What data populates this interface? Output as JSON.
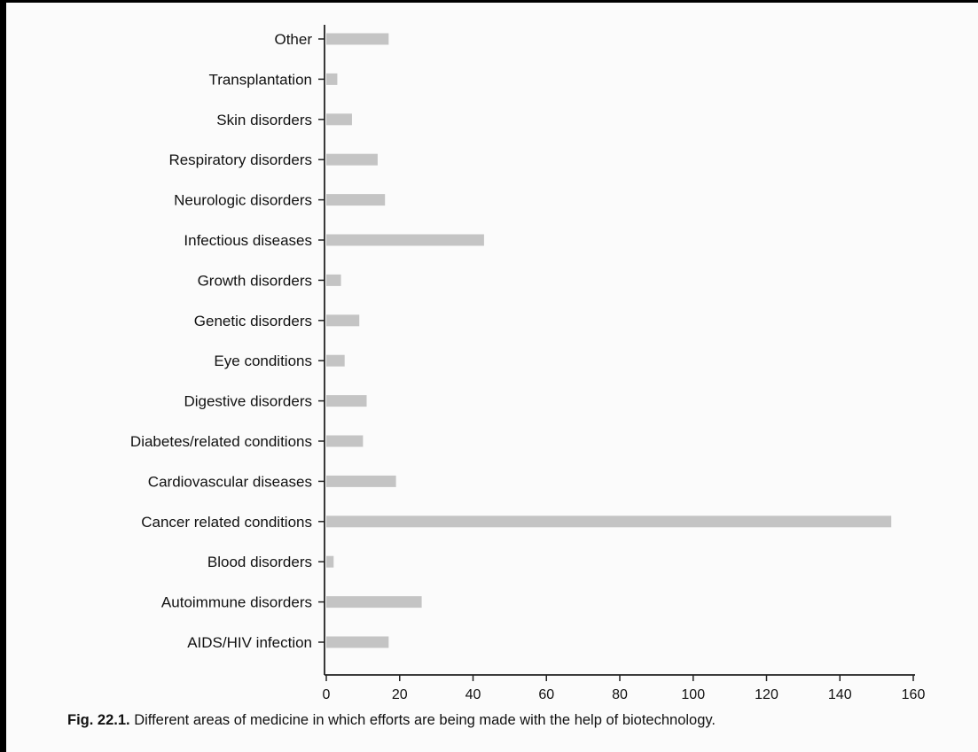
{
  "chart_data": {
    "type": "bar",
    "orientation": "horizontal",
    "categories": [
      "AIDS/HIV infection",
      "Autoimmune disorders",
      "Blood disorders",
      "Cancer related conditions",
      "Cardiovascular diseases",
      "Diabetes/related conditions",
      "Digestive disorders",
      "Eye conditions",
      "Genetic disorders",
      "Growth disorders",
      "Infectious diseases",
      "Neurologic disorders",
      "Respiratory disorders",
      "Skin disorders",
      "Transplantation",
      "Other"
    ],
    "values": [
      17,
      26,
      2,
      154,
      19,
      10,
      11,
      5,
      9,
      4,
      43,
      16,
      14,
      7,
      3,
      17
    ],
    "xlim": [
      0,
      160
    ],
    "xticks": [
      0,
      20,
      40,
      60,
      80,
      100,
      120,
      140,
      160
    ],
    "grid": false,
    "bar_color": "#c4c4c4"
  },
  "caption": {
    "number": "Fig. 22.1.",
    "text": "Different areas of medicine in which efforts are being made with the help of biotechnology."
  }
}
